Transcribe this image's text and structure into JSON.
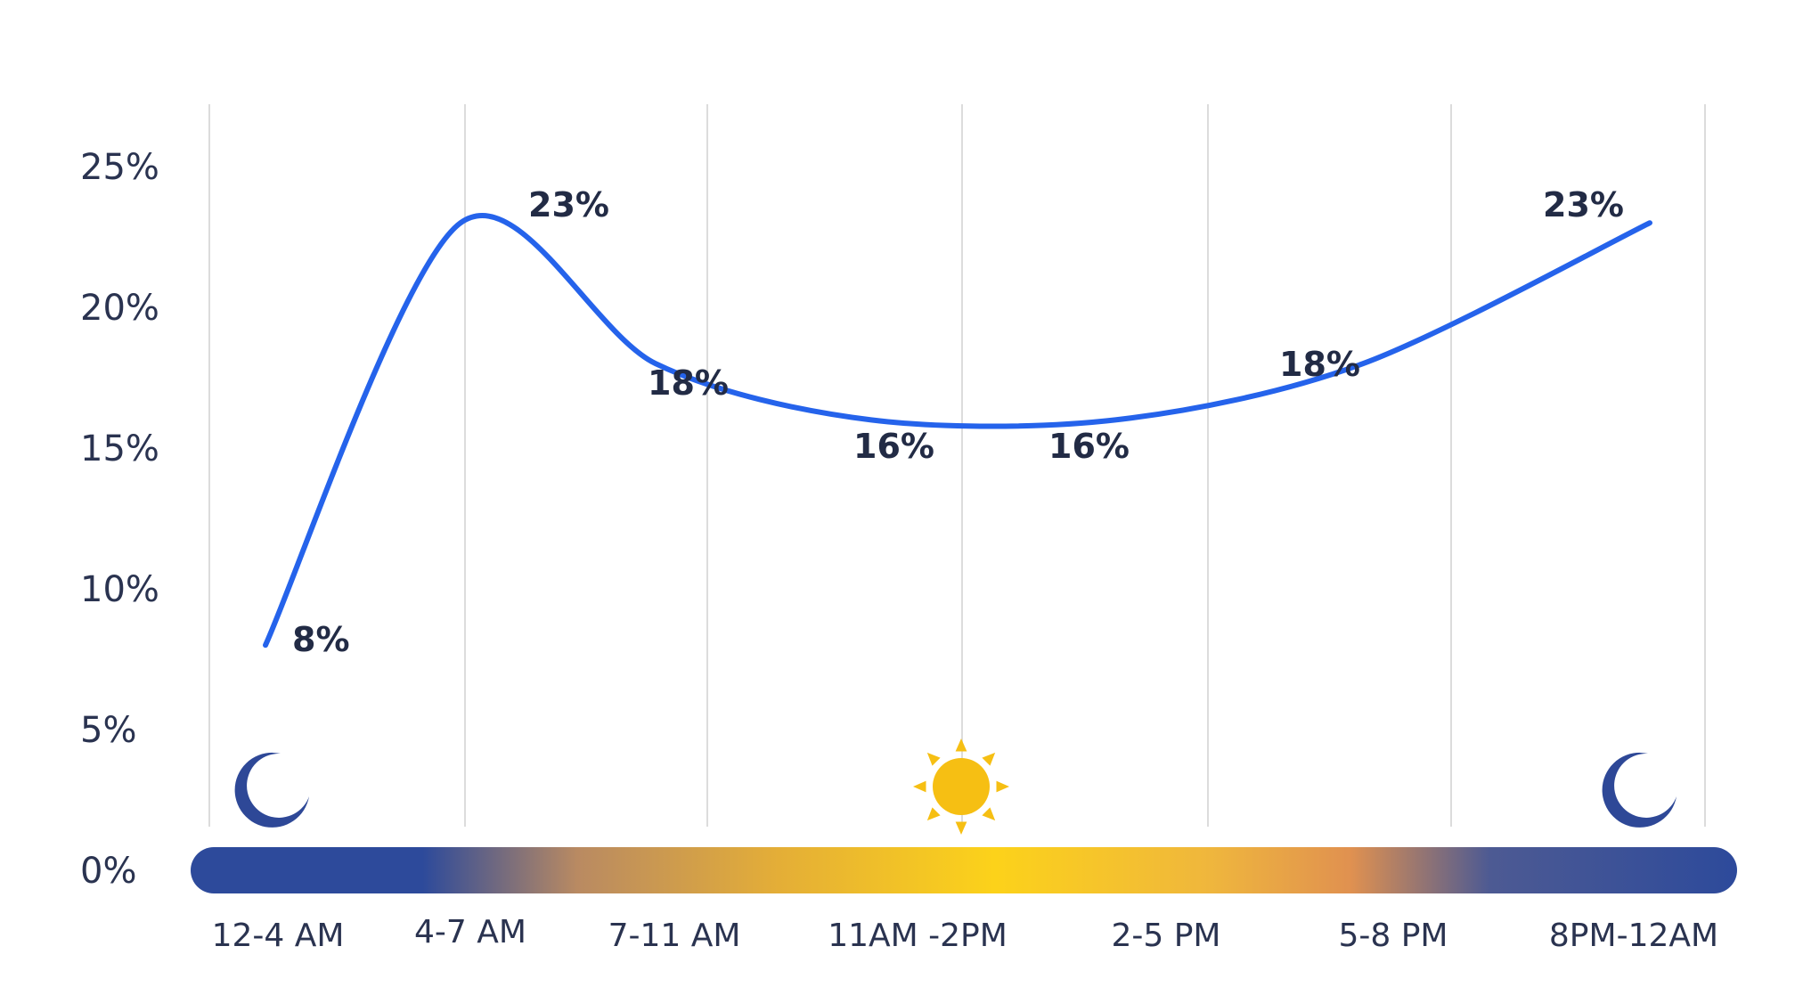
{
  "chart_data": {
    "type": "line",
    "title": "",
    "xlabel": "",
    "ylabel": "",
    "categories": [
      "12-4 AM",
      "4-7 AM",
      "7-11 AM",
      "11AM -2PM",
      "2-5 PM",
      "5-8 PM",
      "8PM-12AM"
    ],
    "series": [
      {
        "values": [
          8,
          23,
          18,
          16,
          16,
          18,
          23
        ],
        "color": "#2563eb"
      }
    ],
    "data_labels": [
      "8%",
      "23%",
      "18%",
      "16%",
      "16%",
      "18%",
      "23%"
    ],
    "y_ticks": [
      {
        "value": 0,
        "label": "0%"
      },
      {
        "value": 5,
        "label": "5%"
      },
      {
        "value": 10,
        "label": "10%"
      },
      {
        "value": 15,
        "label": "15%"
      },
      {
        "value": 20,
        "label": "20%"
      },
      {
        "value": 25,
        "label": "25%"
      }
    ],
    "ylim": [
      0,
      25
    ],
    "grid": "vertical",
    "legend": "none",
    "time_of_day_icons": [
      "moon-icon",
      "sun-icon",
      "moon-icon"
    ],
    "colors": {
      "line": "#2563eb",
      "grid": "#dcdcdc",
      "night": "#2d4a9b",
      "dusk": "#c98d55",
      "day": "#fcd21a",
      "sun": "#f6bf13",
      "moon": "#2e4897",
      "text": "#2a3350",
      "label": "#222b45"
    }
  }
}
